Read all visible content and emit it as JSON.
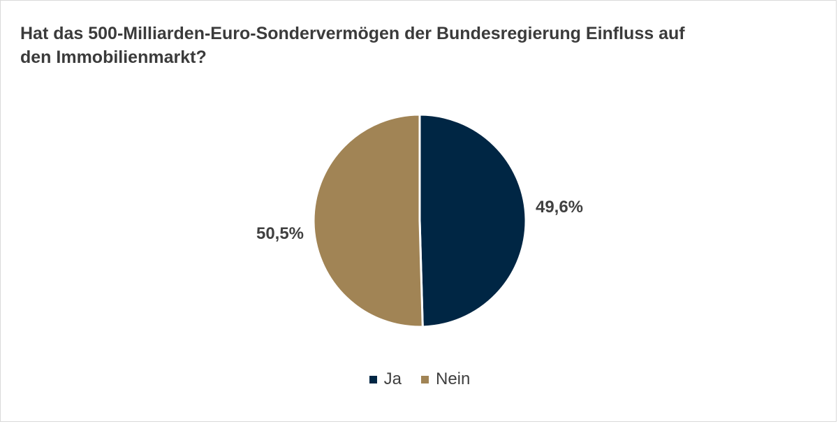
{
  "chart_data": {
    "type": "pie",
    "title": "Hat das 500-Milliarden-Euro-Sondervermögen der Bundesregierung Einfluss auf den Immobilienmarkt?",
    "slices": [
      {
        "label": "Ja",
        "value": 49.6,
        "display": "49,6%",
        "color": "#002644"
      },
      {
        "label": "Nein",
        "value": 50.5,
        "display": "50,5%",
        "color": "#a18455"
      }
    ],
    "legend_position": "bottom"
  }
}
